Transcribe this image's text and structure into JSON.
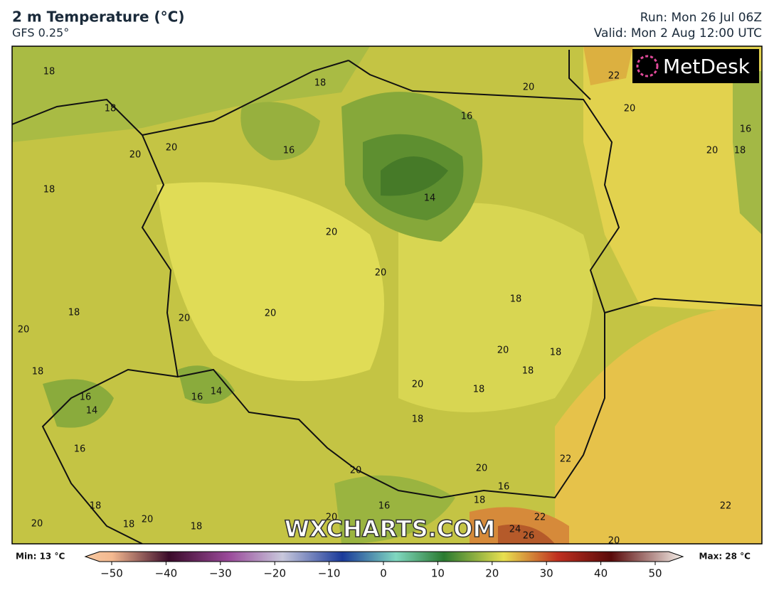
{
  "header": {
    "title": "2 m Temperature (°C)",
    "subtitle": "GFS 0.25°",
    "run": "Run: Mon 26 Jul 06Z",
    "valid": "Valid: Mon 2 Aug 12:00 UTC"
  },
  "map": {
    "logo": "MetDesk",
    "watermark": "WXCHARTS.COM",
    "contour_labels": [
      "18",
      "18",
      "18",
      "20",
      "22",
      "16",
      "20",
      "16",
      "20",
      "20",
      "16",
      "20",
      "18",
      "18",
      "14",
      "20",
      "20",
      "18",
      "20",
      "20",
      "18",
      "20",
      "20",
      "18",
      "18",
      "18",
      "20",
      "14",
      "16",
      "16",
      "18",
      "14",
      "18",
      "16",
      "22",
      "20",
      "20",
      "16",
      "18",
      "18",
      "16",
      "22",
      "22",
      "20",
      "20",
      "18",
      "20",
      "18",
      "24",
      "26",
      "20"
    ]
  },
  "colorbar": {
    "min_label": "Min: 13 °C",
    "max_label": "Max: 28 °C",
    "ticks": [
      "−50",
      "−40",
      "−30",
      "−20",
      "−10",
      "0",
      "10",
      "20",
      "30",
      "40",
      "50"
    ]
  }
}
